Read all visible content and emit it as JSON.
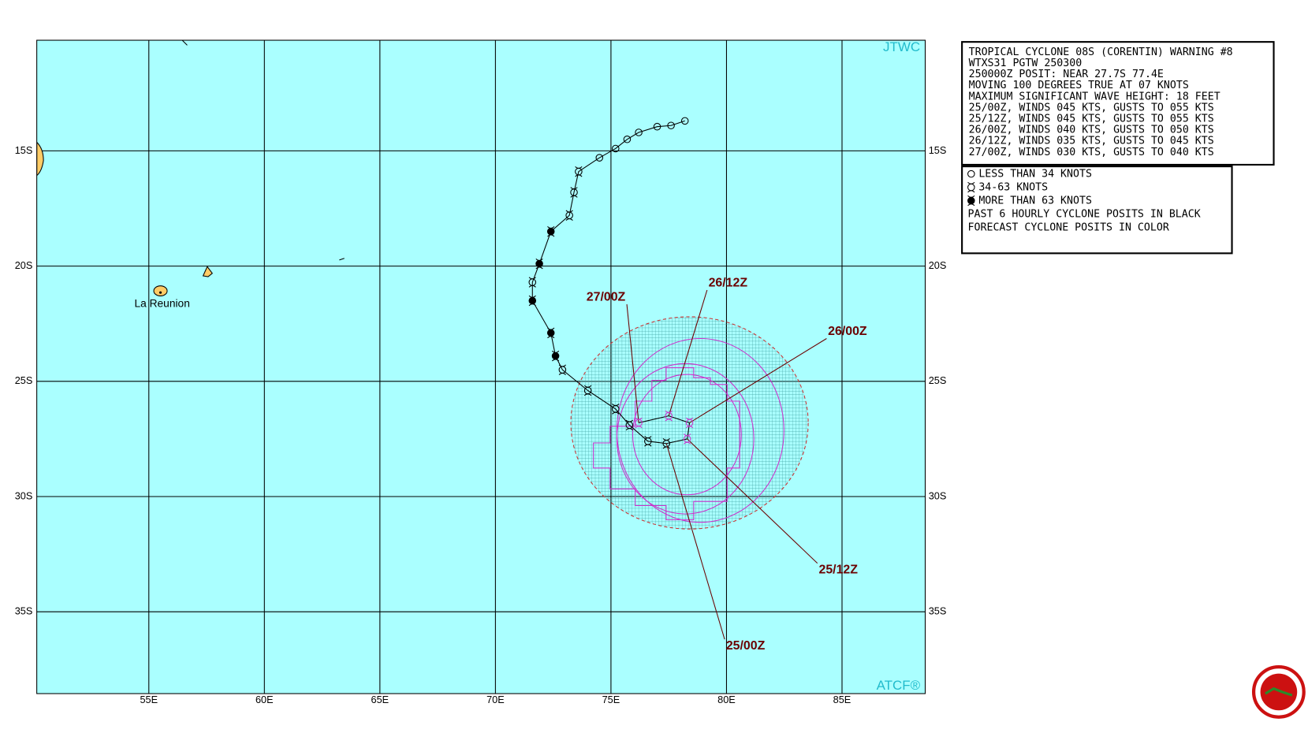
{
  "map": {
    "corner_labels": {
      "top_right": "JTWC",
      "bottom_right": "ATCF®"
    },
    "place_label": "La Reunion",
    "xlim": [
      50.15,
      88.6
    ],
    "ylim": [
      -38.55,
      -10.2
    ],
    "xticks": [
      {
        "value": 55,
        "label": "55E"
      },
      {
        "value": 60,
        "label": "60E"
      },
      {
        "value": 65,
        "label": "65E"
      },
      {
        "value": 70,
        "label": "70E"
      },
      {
        "value": 75,
        "label": "75E"
      },
      {
        "value": 80,
        "label": "80E"
      },
      {
        "value": 85,
        "label": "85E"
      }
    ],
    "yticks": [
      {
        "value": -15,
        "label": "15S"
      },
      {
        "value": -20,
        "label": "20S"
      },
      {
        "value": -25,
        "label": "25S"
      },
      {
        "value": -30,
        "label": "30S"
      },
      {
        "value": -35,
        "label": "35S"
      }
    ],
    "past_track": {
      "lon": [
        78.2,
        77.6,
        77.0,
        76.2,
        75.7,
        75.2,
        74.5,
        73.6,
        73.4,
        73.2,
        72.4,
        71.9,
        71.6,
        71.6,
        72.4,
        72.6,
        72.9,
        74.0,
        75.2,
        75.8,
        76.6,
        77.4
      ],
      "lat": [
        -13.7,
        -13.9,
        -13.95,
        -14.2,
        -14.5,
        -14.9,
        -15.3,
        -15.9,
        -16.8,
        -17.8,
        -18.5,
        -19.9,
        -20.7,
        -21.5,
        -22.9,
        -23.9,
        -24.5,
        -25.4,
        -26.2,
        -26.9,
        -27.6,
        -27.7
      ],
      "marker": [
        "open",
        "open",
        "open",
        "open",
        "open",
        "open",
        "open",
        "storm",
        "storm",
        "storm",
        "filled",
        "filled",
        "storm",
        "filled",
        "filled",
        "filled",
        "storm",
        "storm",
        "storm",
        "storm",
        "storm",
        "storm"
      ]
    },
    "forecast": {
      "labels": [
        "25/00Z",
        "25/12Z",
        "26/00Z",
        "26/12Z",
        "27/00Z"
      ],
      "lon": [
        77.4,
        78.3,
        78.4,
        77.5,
        76.2
      ],
      "lat": [
        -27.7,
        -27.5,
        -26.8,
        -26.5,
        -26.8
      ],
      "color": "#cc33cc",
      "label_color": "#6b0000"
    }
  },
  "warning": {
    "lines": [
      "TROPICAL CYCLONE 08S (CORENTIN) WARNING #8",
      "WTXS31 PGTW 250300",
      "250000Z POSIT: NEAR 27.7S 77.4E",
      "MOVING 100 DEGREES TRUE AT 07 KNOTS",
      "MAXIMUM SIGNIFICANT WAVE HEIGHT: 18 FEET",
      "25/00Z, WINDS 045 KTS, GUSTS TO 055 KTS",
      "25/12Z, WINDS 045 KTS, GUSTS TO 055 KTS",
      "26/00Z, WINDS 040 KTS, GUSTS TO 050 KTS",
      "26/12Z, WINDS 035 KTS, GUSTS TO 045 KTS",
      "27/00Z, WINDS 030 KTS, GUSTS TO 040 KTS"
    ]
  },
  "legend": {
    "symbols": [
      "LESS THAN 34 KNOTS",
      "34-63 KNOTS",
      "MORE THAN 63 KNOTS"
    ],
    "notes": [
      "PAST 6 HOURLY CYCLONE POSITS IN BLACK",
      "FORECAST CYCLONE POSITS IN COLOR"
    ]
  }
}
